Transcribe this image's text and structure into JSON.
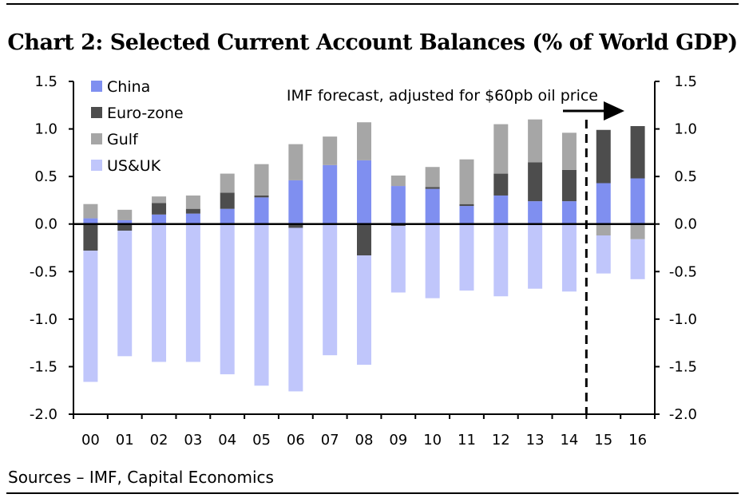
{
  "title": "Chart 2: Selected Current Account Balances (% of World GDP)",
  "source": "Sources – IMF, Capital Economics",
  "chart_data": {
    "type": "bar",
    "stacked": true,
    "title": "Chart 2: Selected Current Account Balances (% of World GDP)",
    "xlabel": "",
    "ylabel": "",
    "ylim": [
      -2.0,
      1.5
    ],
    "yticks": [
      "1.5",
      "1.0",
      "0.5",
      "0.0",
      "-0.5",
      "-1.0",
      "-1.5",
      "-2.0"
    ],
    "legend_position": "top-left",
    "annotation": "IMF forecast, adjusted for $60pb oil price",
    "forecast_start_category": "15",
    "categories": [
      "00",
      "01",
      "02",
      "03",
      "04",
      "05",
      "06",
      "07",
      "08",
      "09",
      "10",
      "11",
      "12",
      "13",
      "14",
      "15",
      "16"
    ],
    "series": [
      {
        "name": "China",
        "color": "#7f8ff0",
        "values": [
          0.06,
          0.04,
          0.1,
          0.11,
          0.16,
          0.28,
          0.46,
          0.62,
          0.67,
          0.4,
          0.37,
          0.19,
          0.3,
          0.24,
          0.24,
          0.43,
          0.48
        ]
      },
      {
        "name": "Euro-zone",
        "color": "#4d4d4d",
        "values": [
          -0.28,
          -0.07,
          0.12,
          0.05,
          0.17,
          0.02,
          -0.04,
          0.0,
          -0.33,
          -0.02,
          0.02,
          0.02,
          0.23,
          0.41,
          0.33,
          0.56,
          0.55
        ]
      },
      {
        "name": "Gulf",
        "color": "#a6a6a6",
        "values": [
          0.15,
          0.11,
          0.07,
          0.14,
          0.2,
          0.33,
          0.38,
          0.3,
          0.4,
          0.11,
          0.21,
          0.47,
          0.52,
          0.45,
          0.39,
          -0.12,
          -0.16
        ]
      },
      {
        "name": "US&UK",
        "color": "#c0c6fb",
        "values": [
          -1.38,
          -1.32,
          -1.45,
          -1.45,
          -1.58,
          -1.7,
          -1.72,
          -1.38,
          -1.15,
          -0.7,
          -0.78,
          -0.7,
          -0.76,
          -0.68,
          -0.71,
          -0.4,
          -0.42
        ]
      }
    ]
  }
}
